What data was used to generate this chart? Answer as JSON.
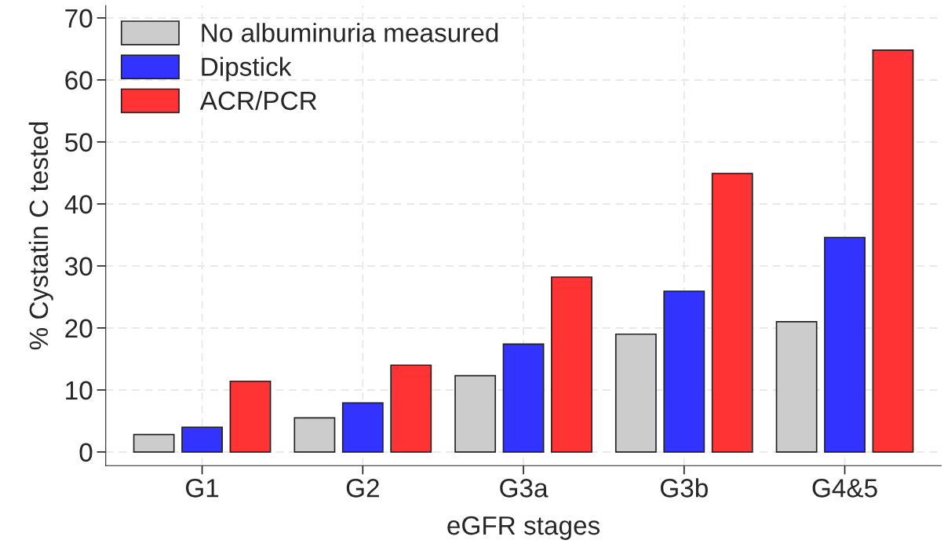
{
  "chart_data": {
    "type": "bar",
    "xlabel": "eGFR stages",
    "ylabel": "% Cystatin C tested",
    "categories": [
      "G1",
      "G2",
      "G3a",
      "G3b",
      "G4&5"
    ],
    "series": [
      {
        "name": "No albuminuria measured",
        "color": "#cccccc",
        "values": [
          2.8,
          5.5,
          12.3,
          19.0,
          21.0
        ]
      },
      {
        "name": "Dipstick",
        "color": "#3333ff",
        "values": [
          4.0,
          7.9,
          17.4,
          25.9,
          34.6
        ]
      },
      {
        "name": "ACR/PCR",
        "color": "#ff3333",
        "values": [
          11.4,
          14.0,
          28.2,
          44.9,
          64.8
        ]
      }
    ],
    "ylim": [
      -2.2,
      72
    ],
    "yticks": [
      0,
      10,
      20,
      30,
      40,
      50,
      60,
      70
    ],
    "grid": true,
    "legend": "top left"
  }
}
